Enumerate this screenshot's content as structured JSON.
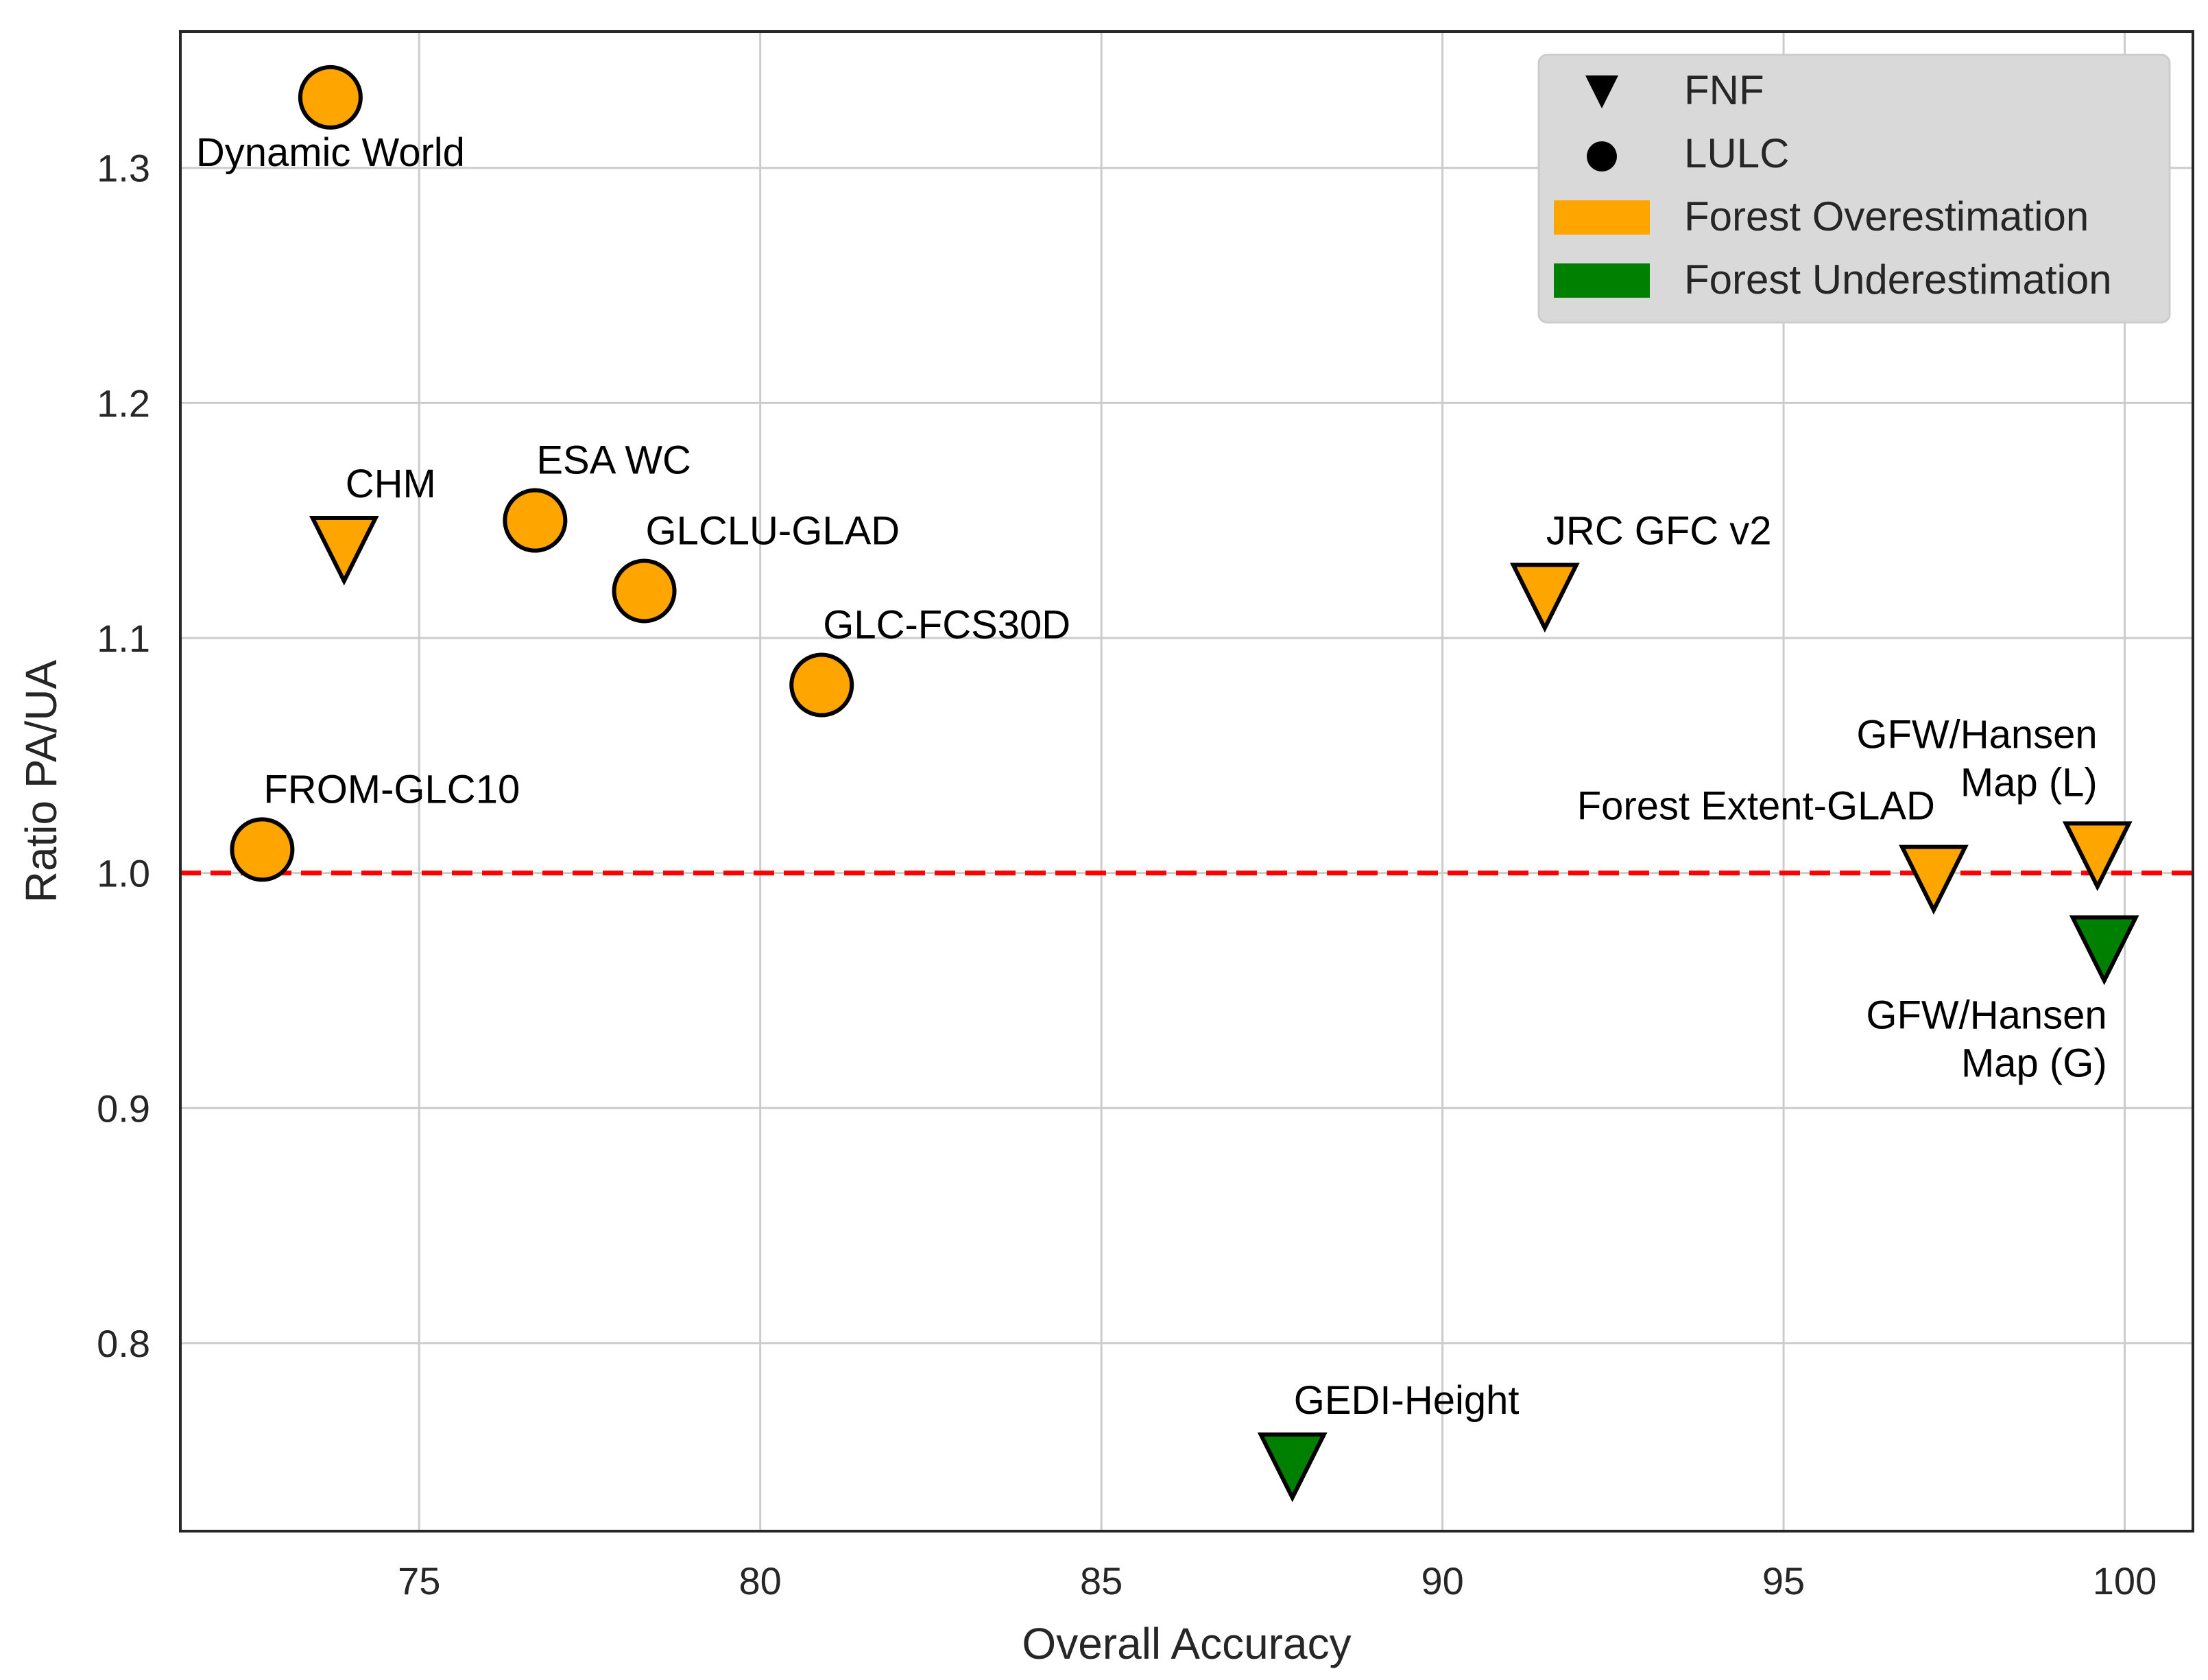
{
  "chart_data": {
    "type": "scatter",
    "title": "",
    "xlabel": "Overall Accuracy",
    "ylabel": "Ratio PA/UA",
    "xlim": [
      71.5,
      101.0
    ],
    "ylim": [
      0.72,
      1.358
    ],
    "xticks": [
      75,
      80,
      85,
      90,
      95,
      100
    ],
    "yticks": [
      0.8,
      0.9,
      1.0,
      1.1,
      1.2,
      1.3
    ],
    "xtick_labels": [
      "75",
      "80",
      "85",
      "90",
      "95",
      "100"
    ],
    "ytick_labels": [
      "0.8",
      "0.9",
      "1.0",
      "1.1",
      "1.2",
      "1.3"
    ],
    "grid": true,
    "reference_line": {
      "y": 1.0,
      "style": "dashed",
      "color": "#ff0000"
    },
    "colors": {
      "overestimation": "#ffa500",
      "underestimation": "#008000"
    },
    "legend": {
      "placement": "top-right",
      "entries": [
        {
          "label": "FNF",
          "marker": "triangle-down",
          "color": "#000000"
        },
        {
          "label": "LULC",
          "marker": "circle",
          "color": "#000000"
        },
        {
          "label": "Forest Overestimation",
          "marker": "patch",
          "color": "#ffa500"
        },
        {
          "label": "Forest Underestimation",
          "marker": "patch",
          "color": "#008000"
        }
      ]
    },
    "points": [
      {
        "label": "Dynamic World",
        "x": 73.7,
        "y": 1.33,
        "type": "LULC",
        "category": "overestimation",
        "label_pos": "below"
      },
      {
        "label": "CHM",
        "x": 73.9,
        "y": 1.14,
        "type": "FNF",
        "category": "overestimation",
        "label_pos": "above-right"
      },
      {
        "label": "ESA WC",
        "x": 76.7,
        "y": 1.15,
        "type": "LULC",
        "category": "overestimation",
        "label_pos": "above-right"
      },
      {
        "label": "GLCLU-GLAD",
        "x": 78.3,
        "y": 1.12,
        "type": "LULC",
        "category": "overestimation",
        "label_pos": "above-right"
      },
      {
        "label": "GLC-FCS30D",
        "x": 80.9,
        "y": 1.08,
        "type": "LULC",
        "category": "overestimation",
        "label_pos": "above-right"
      },
      {
        "label": "FROM-GLC10",
        "x": 72.7,
        "y": 1.01,
        "type": "LULC",
        "category": "overestimation",
        "label_pos": "above-right"
      },
      {
        "label": "JRC GFC v2",
        "x": 91.5,
        "y": 1.12,
        "type": "FNF",
        "category": "overestimation",
        "label_pos": "above-right"
      },
      {
        "label": "Forest Extent-GLAD",
        "x": 97.2,
        "y": 1.0,
        "type": "FNF",
        "category": "overestimation",
        "label_pos": "above-left"
      },
      {
        "label_lines": [
          "GFW/Hansen",
          "Map (L)"
        ],
        "x": 99.6,
        "y": 1.01,
        "type": "FNF",
        "category": "overestimation",
        "label_pos": "above-left"
      },
      {
        "label_lines": [
          "GFW/Hansen",
          "Map (G)"
        ],
        "x": 99.7,
        "y": 0.97,
        "type": "FNF",
        "category": "underestimation",
        "label_pos": "below-left"
      },
      {
        "label": "GEDI-Height",
        "x": 87.8,
        "y": 0.75,
        "type": "FNF",
        "category": "underestimation",
        "label_pos": "above-right"
      }
    ]
  }
}
